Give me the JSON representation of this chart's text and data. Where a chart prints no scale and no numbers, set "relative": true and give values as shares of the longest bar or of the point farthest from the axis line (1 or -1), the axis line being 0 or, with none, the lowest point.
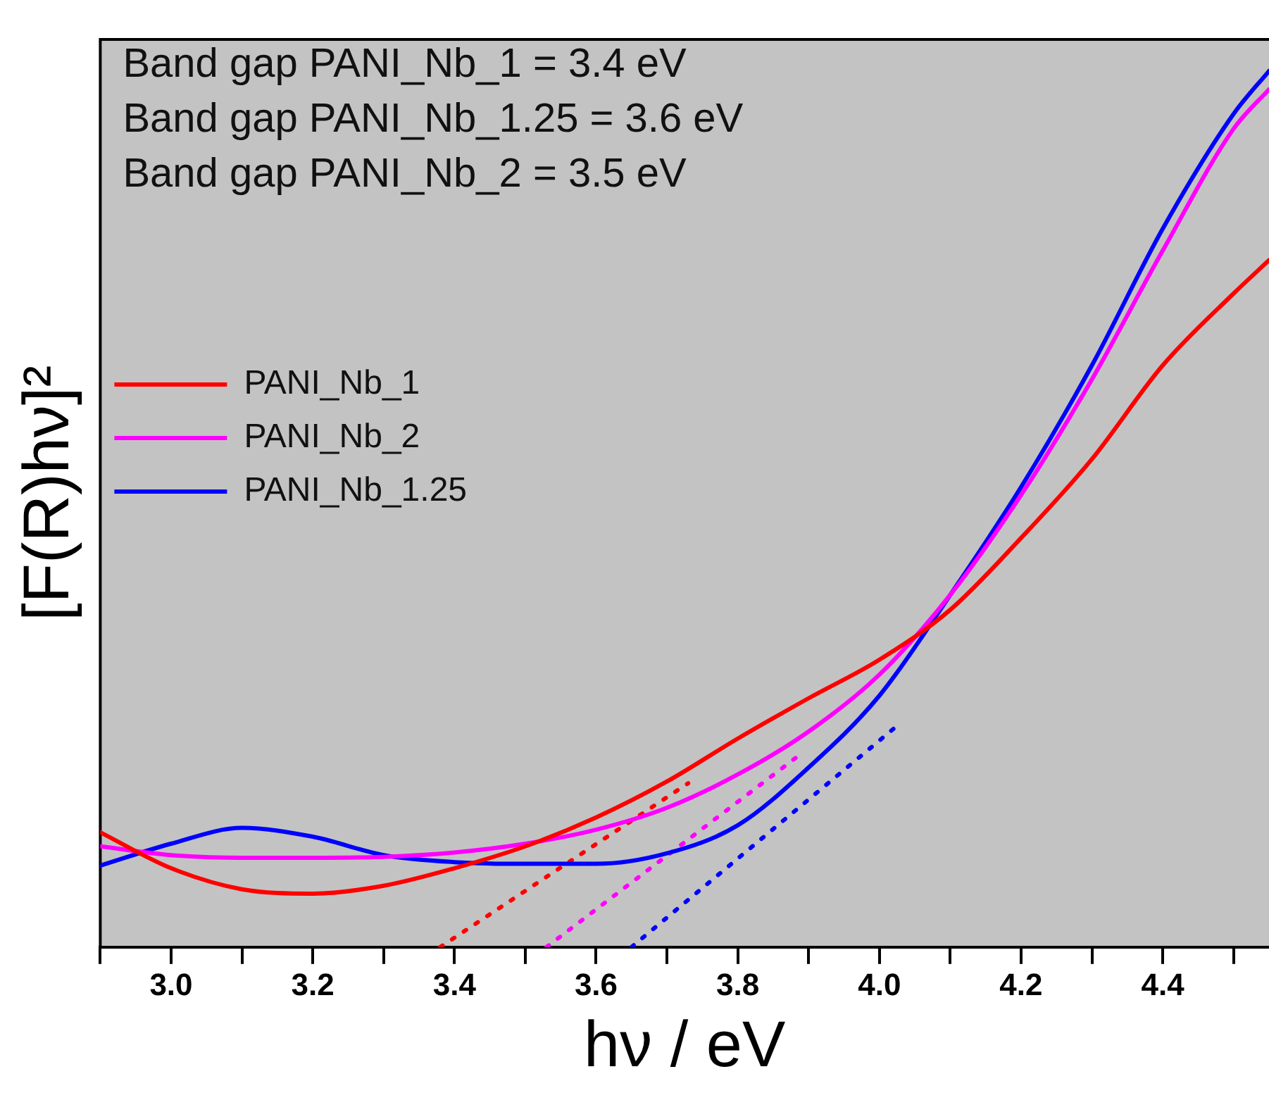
{
  "chart_data": {
    "type": "line",
    "xlabel": "hν / eV",
    "ylabel": "[F(R)hν]²",
    "relative": true,
    "grid": false,
    "legend": "left",
    "line_style": "solid",
    "marker": "none",
    "annotations": [
      "Band gap PANI_Nb_1 = 3.4 eV",
      "Band gap PANI_Nb_1.25 = 3.6 eV",
      "Band gap PANI_Nb_2 = 3.5 eV"
    ],
    "xlim": [
      2.9,
      4.55
    ],
    "xticks": [
      {
        "value": 2.9,
        "label": null
      },
      {
        "value": 3.0,
        "label": "3.0"
      },
      {
        "value": 3.1,
        "label": null
      },
      {
        "value": 3.2,
        "label": "3.2"
      },
      {
        "value": 3.3,
        "label": null
      },
      {
        "value": 3.4,
        "label": "3.4"
      },
      {
        "value": 3.5,
        "label": null
      },
      {
        "value": 3.6,
        "label": "3.6"
      },
      {
        "value": 3.7,
        "label": null
      },
      {
        "value": 3.8,
        "label": "3.8"
      },
      {
        "value": 3.9,
        "label": null
      },
      {
        "value": 4.0,
        "label": "4.0"
      },
      {
        "value": 4.1,
        "label": null
      },
      {
        "value": 4.2,
        "label": "4.2"
      },
      {
        "value": 4.3,
        "label": null
      },
      {
        "value": 4.4,
        "label": "4.4"
      },
      {
        "value": 4.5,
        "label": null
      }
    ],
    "x": [
      2.9,
      3.0,
      3.1,
      3.2,
      3.3,
      3.4,
      3.5,
      3.6,
      3.7,
      3.8,
      3.9,
      4.0,
      4.1,
      4.2,
      4.3,
      4.4,
      4.5,
      4.55
    ],
    "series": [
      {
        "name": "PANI_Nb_1",
        "color": "#ff0000",
        "values": [
          0.131,
          0.09,
          0.066,
          0.061,
          0.07,
          0.09,
          0.115,
          0.148,
          0.189,
          0.238,
          0.284,
          0.328,
          0.385,
          0.467,
          0.557,
          0.664,
          0.746,
          0.784
        ]
      },
      {
        "name": "PANI_Nb_2",
        "color": "#ff00ff",
        "values": [
          0.115,
          0.105,
          0.102,
          0.102,
          0.103,
          0.108,
          0.118,
          0.134,
          0.159,
          0.197,
          0.246,
          0.311,
          0.402,
          0.516,
          0.648,
          0.795,
          0.934,
          0.979
        ]
      },
      {
        "name": "PANI_Nb_1.25",
        "color": "#0000ff",
        "values": [
          0.093,
          0.118,
          0.136,
          0.126,
          0.105,
          0.097,
          0.095,
          0.095,
          0.107,
          0.139,
          0.205,
          0.287,
          0.402,
          0.525,
          0.664,
          0.82,
          0.951,
          1.0
        ]
      },
      {
        "type": "line",
        "color": "#ff0000",
        "line_style": "dotted",
        "x": [
          3.38,
          3.73
        ],
        "values": [
          0.0,
          0.187
        ]
      },
      {
        "type": "line",
        "color": "#ff00ff",
        "line_style": "dotted",
        "x": [
          3.53,
          3.89
        ],
        "values": [
          0.0,
          0.221
        ]
      },
      {
        "type": "line",
        "color": "#0000ff",
        "line_style": "dotted",
        "x": [
          3.65,
          4.03
        ],
        "values": [
          0.0,
          0.256
        ]
      }
    ]
  }
}
